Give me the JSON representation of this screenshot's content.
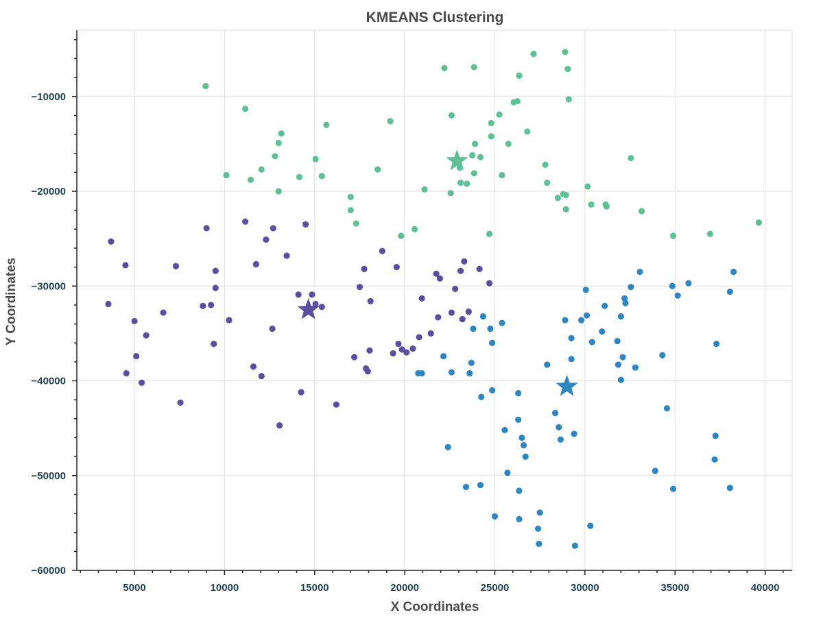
{
  "chart_data": {
    "type": "scatter",
    "title": "KMEANS Clustering",
    "xlabel": "X Coordinates",
    "ylabel": "Y Coordinates",
    "xlim": [
      1800,
      41500
    ],
    "ylim": [
      -60000,
      -3000
    ],
    "xticks": [
      5000,
      10000,
      15000,
      20000,
      25000,
      30000,
      35000,
      40000
    ],
    "yticks": [
      -10000,
      -20000,
      -30000,
      -40000,
      -50000,
      -60000
    ],
    "xtick_labels": [
      "5000",
      "10000",
      "15000",
      "20000",
      "25000",
      "30000",
      "35000",
      "40000"
    ],
    "ytick_labels": [
      "−10000",
      "−20000",
      "−30000",
      "−40000",
      "−50000",
      "−60000"
    ],
    "grid": true,
    "series": [
      {
        "color": "#5fbf96",
        "centroid": [
          22900,
          -16800
        ],
        "points": [
          [
            8950,
            -8900
          ],
          [
            11150,
            -11300
          ],
          [
            13150,
            -13900
          ],
          [
            13000,
            -14900
          ],
          [
            12800,
            -16300
          ],
          [
            12050,
            -17700
          ],
          [
            10100,
            -18300
          ],
          [
            11450,
            -18800
          ],
          [
            14150,
            -18500
          ],
          [
            15400,
            -18400
          ],
          [
            15050,
            -16600
          ],
          [
            15650,
            -13000
          ],
          [
            13000,
            -20000
          ],
          [
            17000,
            -20600
          ],
          [
            17000,
            -22000
          ],
          [
            17300,
            -23400
          ],
          [
            18500,
            -17700
          ],
          [
            19200,
            -12600
          ],
          [
            19800,
            -24700
          ],
          [
            20550,
            -24000
          ],
          [
            21100,
            -19800
          ],
          [
            22200,
            -7000
          ],
          [
            23850,
            -6900
          ],
          [
            22600,
            -12000
          ],
          [
            22550,
            -20200
          ],
          [
            23050,
            -17500
          ],
          [
            23100,
            -19100
          ],
          [
            23450,
            -19200
          ],
          [
            23750,
            -16200
          ],
          [
            23850,
            -18100
          ],
          [
            23900,
            -15000
          ],
          [
            24200,
            -16400
          ],
          [
            24700,
            -24500
          ],
          [
            24800,
            -12800
          ],
          [
            24800,
            -14200
          ],
          [
            25250,
            -11900
          ],
          [
            25400,
            -18300
          ],
          [
            25750,
            -15000
          ],
          [
            26050,
            -10600
          ],
          [
            26250,
            -10500
          ],
          [
            26350,
            -7800
          ],
          [
            26800,
            -13700
          ],
          [
            27150,
            -5500
          ],
          [
            27800,
            -17200
          ],
          [
            27900,
            -19100
          ],
          [
            28500,
            -20700
          ],
          [
            28800,
            -20300
          ],
          [
            28950,
            -20400
          ],
          [
            28900,
            -5300
          ],
          [
            29050,
            -7100
          ],
          [
            29100,
            -10300
          ],
          [
            28950,
            -21900
          ],
          [
            30150,
            -19500
          ],
          [
            30350,
            -21400
          ],
          [
            31150,
            -21400
          ],
          [
            31200,
            -21600
          ],
          [
            32550,
            -16500
          ],
          [
            33150,
            -22100
          ],
          [
            34900,
            -24700
          ],
          [
            36950,
            -24500
          ],
          [
            39650,
            -23300
          ]
        ]
      },
      {
        "color": "#5b4ea0",
        "centroid": [
          14650,
          -32500
        ],
        "points": [
          [
            3700,
            -25300
          ],
          [
            3550,
            -31900
          ],
          [
            4500,
            -27800
          ],
          [
            4550,
            -39200
          ],
          [
            5000,
            -33700
          ],
          [
            5100,
            -37400
          ],
          [
            5400,
            -40200
          ],
          [
            5650,
            -35200
          ],
          [
            6600,
            -32800
          ],
          [
            7300,
            -27900
          ],
          [
            7550,
            -42300
          ],
          [
            8800,
            -32100
          ],
          [
            9000,
            -23900
          ],
          [
            9250,
            -32000
          ],
          [
            9400,
            -36100
          ],
          [
            9500,
            -28400
          ],
          [
            9500,
            -30200
          ],
          [
            10250,
            -33600
          ],
          [
            11150,
            -23200
          ],
          [
            11600,
            -38500
          ],
          [
            11750,
            -27700
          ],
          [
            12050,
            -39500
          ],
          [
            12300,
            -25100
          ],
          [
            12650,
            -34500
          ],
          [
            12700,
            -23900
          ],
          [
            13050,
            -44700
          ],
          [
            13450,
            -26800
          ],
          [
            14100,
            -30900
          ],
          [
            14250,
            -41200
          ],
          [
            14500,
            -23500
          ],
          [
            14850,
            -30900
          ],
          [
            15050,
            -31900
          ],
          [
            15400,
            -32200
          ],
          [
            16200,
            -42500
          ],
          [
            17200,
            -37500
          ],
          [
            17500,
            -30100
          ],
          [
            17750,
            -28200
          ],
          [
            17850,
            -38700
          ],
          [
            17950,
            -39000
          ],
          [
            18050,
            -36800
          ],
          [
            18100,
            -31600
          ],
          [
            18750,
            -26300
          ],
          [
            19350,
            -37100
          ],
          [
            19550,
            -28000
          ],
          [
            19650,
            -36100
          ],
          [
            19850,
            -36700
          ],
          [
            20100,
            -37000
          ],
          [
            20450,
            -36600
          ],
          [
            20800,
            -35400
          ],
          [
            20950,
            -31300
          ],
          [
            21450,
            -35000
          ],
          [
            21750,
            -28700
          ],
          [
            21850,
            -33300
          ],
          [
            21950,
            -29200
          ],
          [
            22600,
            -32800
          ],
          [
            22800,
            -30300
          ],
          [
            23100,
            -28400
          ],
          [
            23200,
            -33500
          ],
          [
            23300,
            -27400
          ],
          [
            23550,
            -32700
          ],
          [
            24150,
            -28200
          ],
          [
            24700,
            -29700
          ]
        ]
      },
      {
        "color": "#2e86c1",
        "centroid": [
          29000,
          -40600
        ],
        "points": [
          [
            20750,
            -39200
          ],
          [
            20950,
            -39200
          ],
          [
            22150,
            -37400
          ],
          [
            22400,
            -47000
          ],
          [
            22600,
            -39100
          ],
          [
            23400,
            -51200
          ],
          [
            23600,
            -39200
          ],
          [
            23700,
            -38100
          ],
          [
            23800,
            -34500
          ],
          [
            24200,
            -51000
          ],
          [
            24250,
            -41700
          ],
          [
            24350,
            -33200
          ],
          [
            24750,
            -34500
          ],
          [
            24850,
            -36000
          ],
          [
            24850,
            -41000
          ],
          [
            25000,
            -54300
          ],
          [
            25400,
            -33900
          ],
          [
            25550,
            -45200
          ],
          [
            25700,
            -49700
          ],
          [
            26300,
            -41300
          ],
          [
            26300,
            -44100
          ],
          [
            26350,
            -51600
          ],
          [
            26350,
            -54600
          ],
          [
            26500,
            -46000
          ],
          [
            26600,
            -46800
          ],
          [
            26700,
            -48000
          ],
          [
            27450,
            -57200
          ],
          [
            27400,
            -55600
          ],
          [
            27500,
            -53900
          ],
          [
            27900,
            -38300
          ],
          [
            28350,
            -43400
          ],
          [
            28550,
            -44900
          ],
          [
            28650,
            -46200
          ],
          [
            28900,
            -33600
          ],
          [
            29250,
            -35500
          ],
          [
            29250,
            -37700
          ],
          [
            29400,
            -45600
          ],
          [
            29450,
            -57400
          ],
          [
            29800,
            -33600
          ],
          [
            30050,
            -30400
          ],
          [
            30100,
            -33100
          ],
          [
            30300,
            -55300
          ],
          [
            30400,
            -35900
          ],
          [
            30950,
            -34800
          ],
          [
            31100,
            -32100
          ],
          [
            31800,
            -35800
          ],
          [
            31850,
            -38300
          ],
          [
            32000,
            -33200
          ],
          [
            32000,
            -39900
          ],
          [
            32100,
            -37500
          ],
          [
            32200,
            -31300
          ],
          [
            32250,
            -31800
          ],
          [
            32550,
            -30100
          ],
          [
            32800,
            -38600
          ],
          [
            33050,
            -28500
          ],
          [
            33900,
            -49500
          ],
          [
            34300,
            -37300
          ],
          [
            34550,
            -42900
          ],
          [
            34850,
            -30000
          ],
          [
            34900,
            -51400
          ],
          [
            35150,
            -31000
          ],
          [
            35750,
            -29700
          ],
          [
            37200,
            -48300
          ],
          [
            37250,
            -45800
          ],
          [
            37300,
            -36100
          ],
          [
            38050,
            -51300
          ],
          [
            38050,
            -30600
          ],
          [
            38250,
            -28500
          ]
        ]
      }
    ]
  }
}
